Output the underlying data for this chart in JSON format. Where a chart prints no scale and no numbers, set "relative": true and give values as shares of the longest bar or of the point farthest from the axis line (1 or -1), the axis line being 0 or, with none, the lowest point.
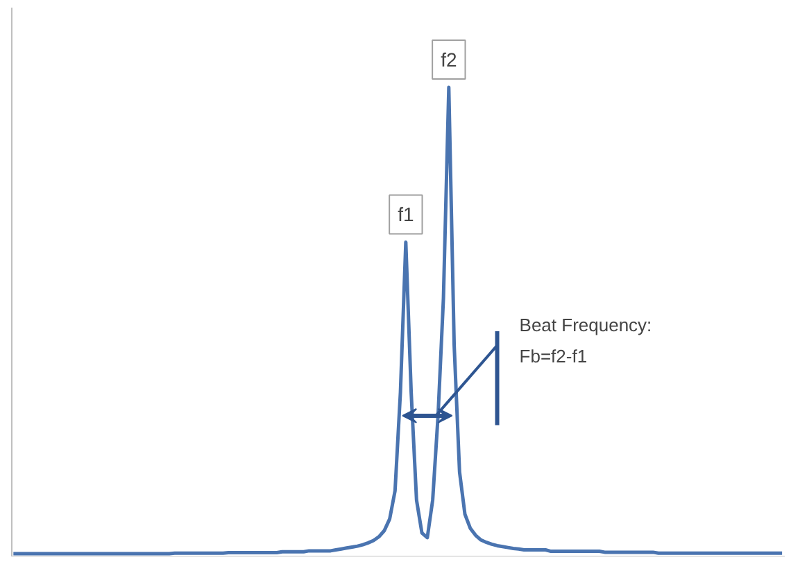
{
  "chart_data": {
    "type": "line",
    "relative": true,
    "categories": [
      null,
      null,
      null,
      null,
      null,
      null,
      null,
      null,
      null,
      null,
      null,
      null,
      null,
      null,
      null,
      null,
      null,
      null,
      null,
      null,
      null,
      null,
      null,
      null,
      null,
      null,
      null,
      null,
      null,
      null,
      null,
      null,
      null,
      null,
      null,
      null,
      null,
      null,
      null,
      null,
      null,
      null,
      null,
      null,
      null,
      null,
      null,
      null,
      null,
      null,
      null,
      null,
      null,
      null,
      null,
      null,
      null,
      null,
      null,
      null,
      null,
      null,
      null,
      null,
      null,
      null,
      null,
      null,
      null,
      null,
      null,
      null,
      null,
      null,
      null,
      null,
      null,
      null,
      null,
      null,
      null,
      null,
      null,
      null,
      null,
      null,
      null,
      null,
      null,
      null,
      null,
      null,
      null,
      null,
      null,
      null,
      null,
      null,
      null,
      null,
      null,
      null,
      null,
      null,
      null,
      null,
      null,
      null,
      null,
      null,
      null,
      null,
      null,
      null,
      null,
      null,
      null,
      null,
      null,
      null,
      null,
      null,
      null,
      null,
      null,
      null,
      null,
      null,
      null,
      null,
      null,
      null,
      null,
      null,
      null,
      null,
      null,
      null,
      null,
      null,
      null,
      null,
      null,
      null
    ],
    "series": [
      {
        "color": "#4a74b0",
        "values": [
          0.006,
          0.006,
          0.006,
          0.006,
          0.006,
          0.006,
          0.006,
          0.006,
          0.006,
          0.006,
          0.006,
          0.006,
          0.006,
          0.006,
          0.006,
          0.006,
          0.006,
          0.006,
          0.006,
          0.006,
          0.006,
          0.006,
          0.006,
          0.006,
          0.006,
          0.006,
          0.006,
          0.006,
          0.006,
          0.006,
          0.007,
          0.007,
          0.007,
          0.007,
          0.007,
          0.007,
          0.007,
          0.007,
          0.007,
          0.007,
          0.008,
          0.008,
          0.008,
          0.008,
          0.008,
          0.008,
          0.008,
          0.008,
          0.008,
          0.008,
          0.01,
          0.01,
          0.01,
          0.01,
          0.01,
          0.012,
          0.012,
          0.012,
          0.012,
          0.012,
          0.014,
          0.016,
          0.018,
          0.02,
          0.022,
          0.025,
          0.029,
          0.034,
          0.042,
          0.055,
          0.08,
          0.14,
          0.35,
          0.67,
          0.35,
          0.12,
          0.05,
          0.04,
          0.12,
          0.3,
          0.55,
          1,
          0.45,
          0.18,
          0.09,
          0.06,
          0.045,
          0.035,
          0.03,
          0.026,
          0.023,
          0.021,
          0.019,
          0.017,
          0.016,
          0.014,
          0.014,
          0.014,
          0.014,
          0.014,
          0.011,
          0.011,
          0.011,
          0.011,
          0.011,
          0.011,
          0.011,
          0.011,
          0.011,
          0.011,
          0.009,
          0.009,
          0.009,
          0.009,
          0.009,
          0.009,
          0.009,
          0.009,
          0.009,
          0.009,
          0.007,
          0.007,
          0.007,
          0.007,
          0.007,
          0.007,
          0.007,
          0.007,
          0.007,
          0.007,
          0.007,
          0.007,
          0.007,
          0.007,
          0.007,
          0.007,
          0.007,
          0.007,
          0.007,
          0.007,
          0.007,
          0.007,
          0.007,
          0.007
        ]
      }
    ],
    "annotations": [
      "f1",
      "f2",
      "Beat Frequency:\nFb=f2-f1"
    ],
    "grid": false
  }
}
